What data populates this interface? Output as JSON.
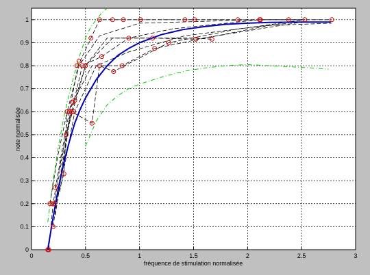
{
  "chart_data": {
    "type": "scatter",
    "title": "",
    "xlabel": "fréquence de stimulation normalisée",
    "ylabel": "note normalisée",
    "xlim": [
      0,
      3
    ],
    "ylim": [
      0,
      1.05
    ],
    "x_ticks": [
      "0",
      "0.5",
      "1",
      "1.5",
      "2",
      "2.5",
      "3"
    ],
    "y_ticks": [
      "0",
      "0.1",
      "0.2",
      "0.3",
      "0.4",
      "0.5",
      "0.6",
      "0.7",
      "0.8",
      "0.9",
      "1"
    ],
    "grid": true,
    "legend": "none",
    "colors": {
      "background": "#c0c0c0",
      "plot_area": "#ffffff",
      "markers": "#dd0000",
      "subject_curves": "#000000",
      "mean_fit": "#0000b4",
      "bounds": "#00c800"
    },
    "data_points": [
      [
        0.15,
        0.0
      ],
      [
        0.16,
        0.0
      ],
      [
        0.17,
        0.2
      ],
      [
        0.19,
        0.2
      ],
      [
        0.2,
        0.1
      ],
      [
        0.21,
        0.2
      ],
      [
        0.22,
        0.27
      ],
      [
        0.3,
        0.33
      ],
      [
        0.32,
        0.5
      ],
      [
        0.33,
        0.6
      ],
      [
        0.35,
        0.6
      ],
      [
        0.37,
        0.6
      ],
      [
        0.39,
        0.6
      ],
      [
        0.38,
        0.64
      ],
      [
        0.4,
        0.65
      ],
      [
        0.42,
        0.8
      ],
      [
        0.44,
        0.82
      ],
      [
        0.47,
        0.8
      ],
      [
        0.5,
        0.8
      ],
      [
        0.55,
        0.92
      ],
      [
        0.56,
        0.55
      ],
      [
        0.63,
        0.8
      ],
      [
        0.65,
        0.84
      ],
      [
        0.63,
        1.0
      ],
      [
        0.75,
        1.0
      ],
      [
        0.85,
        1.0
      ],
      [
        1.01,
        1.0
      ],
      [
        0.76,
        0.775
      ],
      [
        0.84,
        0.8
      ],
      [
        0.9,
        0.92
      ],
      [
        1.12,
        0.92
      ],
      [
        1.14,
        0.875
      ],
      [
        1.27,
        0.9
      ],
      [
        1.42,
        1.0
      ],
      [
        1.51,
        1.0
      ],
      [
        1.52,
        0.915
      ],
      [
        1.67,
        0.915
      ],
      [
        1.91,
        1.0
      ],
      [
        2.11,
        1.0
      ],
      [
        2.12,
        1.0
      ],
      [
        2.38,
        1.0
      ],
      [
        2.53,
        1.0
      ],
      [
        2.78,
        1.0
      ]
    ],
    "subject_curves": [
      [
        [
          0.16,
          0.0
        ],
        [
          0.2,
          0.2
        ],
        [
          0.27,
          0.4
        ],
        [
          0.35,
          0.6
        ],
        [
          0.43,
          0.8
        ],
        [
          0.55,
          0.92
        ],
        [
          0.63,
          1.0
        ],
        [
          0.85,
          1.0
        ],
        [
          1.01,
          1.0
        ],
        [
          2.78,
          1.0
        ]
      ],
      [
        [
          0.15,
          0.0
        ],
        [
          0.22,
          0.2
        ],
        [
          0.3,
          0.33
        ],
        [
          0.33,
          0.6
        ],
        [
          0.44,
          0.8
        ],
        [
          0.63,
          0.93
        ],
        [
          1.0,
          0.985
        ],
        [
          2.12,
          1.0
        ]
      ],
      [
        [
          0.17,
          0.2
        ],
        [
          0.24,
          0.4
        ],
        [
          0.33,
          0.6
        ],
        [
          0.4,
          0.65
        ],
        [
          0.5,
          0.8
        ],
        [
          0.75,
          0.92
        ],
        [
          1.52,
          0.92
        ],
        [
          1.67,
          0.915
        ]
      ],
      [
        [
          0.2,
          0.1
        ],
        [
          0.26,
          0.3
        ],
        [
          0.35,
          0.55
        ],
        [
          0.4,
          0.66
        ],
        [
          0.47,
          0.8
        ],
        [
          0.65,
          0.84
        ],
        [
          0.9,
          0.92
        ],
        [
          1.3,
          0.96
        ],
        [
          2.11,
          1.0
        ],
        [
          2.53,
          1.0
        ]
      ],
      [
        [
          0.21,
          0.2
        ],
        [
          0.32,
          0.5
        ],
        [
          0.38,
          0.64
        ],
        [
          0.56,
          0.8
        ],
        [
          0.84,
          0.8
        ],
        [
          1.14,
          0.875
        ],
        [
          1.5,
          0.91
        ],
        [
          2.2,
          0.975
        ],
        [
          2.78,
          0.985
        ]
      ],
      [
        [
          0.22,
          0.27
        ],
        [
          0.3,
          0.45
        ],
        [
          0.37,
          0.6
        ],
        [
          0.56,
          0.55
        ],
        [
          0.63,
          0.8
        ],
        [
          0.76,
          0.775
        ],
        [
          1.27,
          0.9
        ],
        [
          1.91,
          0.96
        ],
        [
          2.38,
          0.985
        ]
      ],
      [
        [
          0.22,
          0.15
        ],
        [
          0.35,
          0.55
        ],
        [
          0.5,
          0.8
        ],
        [
          0.7,
          0.92
        ],
        [
          1.12,
          0.92
        ],
        [
          1.52,
          0.915
        ],
        [
          2.5,
          0.99
        ]
      ],
      [
        [
          0.26,
          0.25
        ],
        [
          0.4,
          0.6
        ],
        [
          0.6,
          0.8
        ],
        [
          0.9,
          0.86
        ],
        [
          1.42,
          0.93
        ],
        [
          2.0,
          0.965
        ],
        [
          2.53,
          1.0
        ]
      ]
    ],
    "mean_fit": [
      [
        0.15,
        0.0
      ],
      [
        0.2,
        0.14
      ],
      [
        0.25,
        0.27
      ],
      [
        0.3,
        0.38
      ],
      [
        0.35,
        0.47
      ],
      [
        0.4,
        0.55
      ],
      [
        0.45,
        0.61
      ],
      [
        0.5,
        0.66
      ],
      [
        0.6,
        0.74
      ],
      [
        0.7,
        0.8
      ],
      [
        0.8,
        0.845
      ],
      [
        0.9,
        0.875
      ],
      [
        1.0,
        0.9
      ],
      [
        1.2,
        0.935
      ],
      [
        1.4,
        0.957
      ],
      [
        1.6,
        0.97
      ],
      [
        1.8,
        0.98
      ],
      [
        2.0,
        0.985
      ],
      [
        2.2,
        0.988
      ],
      [
        2.5,
        0.99
      ],
      [
        2.77,
        0.99
      ]
    ],
    "upper_bound": [
      [
        0.15,
        0.12
      ],
      [
        0.2,
        0.3
      ],
      [
        0.25,
        0.45
      ],
      [
        0.3,
        0.58
      ],
      [
        0.35,
        0.68
      ],
      [
        0.4,
        0.77
      ],
      [
        0.45,
        0.85
      ],
      [
        0.5,
        0.92
      ],
      [
        0.55,
        0.97
      ],
      [
        0.6,
        1.0
      ],
      [
        0.65,
        1.03
      ],
      [
        0.7,
        1.055
      ]
    ],
    "lower_bound": [
      [
        0.5,
        0.45
      ],
      [
        0.6,
        0.56
      ],
      [
        0.7,
        0.63
      ],
      [
        0.8,
        0.67
      ],
      [
        0.9,
        0.7
      ],
      [
        1.0,
        0.72
      ],
      [
        1.2,
        0.75
      ],
      [
        1.4,
        0.775
      ],
      [
        1.6,
        0.79
      ],
      [
        1.8,
        0.8
      ],
      [
        2.0,
        0.805
      ],
      [
        2.2,
        0.8
      ],
      [
        2.4,
        0.795
      ],
      [
        2.6,
        0.79
      ],
      [
        2.75,
        0.785
      ]
    ]
  }
}
